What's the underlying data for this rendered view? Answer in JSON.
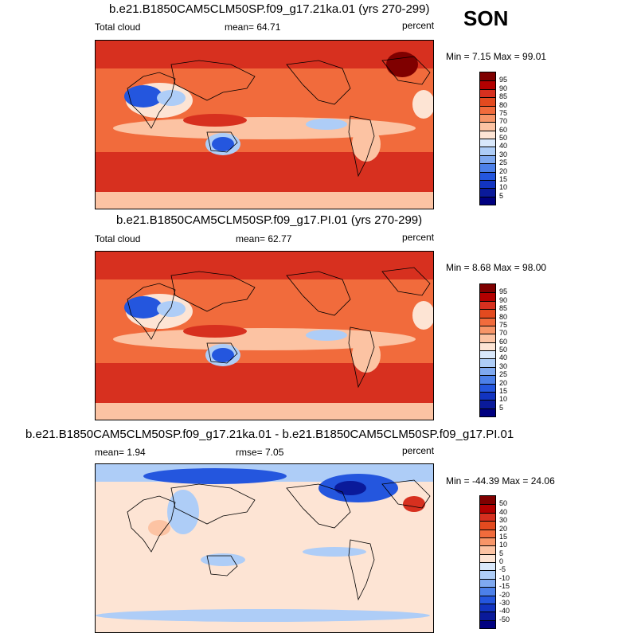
{
  "season": "SON",
  "panels": [
    {
      "title": "b.e21.B1850CAM5CLM50SP.f09_g17.21ka.01 (yrs 270-299)",
      "left_label": "Total cloud",
      "center_label": "mean=  64.71",
      "right_label": "percent",
      "minmax": "Min =   7.15 Max =  99.01",
      "cbar_labels": [
        "95",
        "90",
        "85",
        "80",
        "75",
        "70",
        "60",
        "50",
        "40",
        "30",
        "25",
        "20",
        "15",
        "10",
        "5"
      ],
      "cbar_colors": [
        "#7f0000",
        "#b30000",
        "#d7301f",
        "#e34a1f",
        "#f16b3c",
        "#f79568",
        "#fcc3a3",
        "#fde4d4",
        "#d9e8fb",
        "#aecdf7",
        "#7fa9f0",
        "#4c80e9",
        "#2456de",
        "#1234c0",
        "#0a1a9a",
        "#000080"
      ]
    },
    {
      "title": "b.e21.B1850CAM5CLM50SP.f09_g17.PI.01 (yrs 270-299)",
      "left_label": "Total cloud",
      "center_label": "mean=  62.77",
      "right_label": "percent",
      "minmax": "Min =   8.68 Max =  98.00",
      "cbar_labels": [
        "95",
        "90",
        "85",
        "80",
        "75",
        "70",
        "60",
        "50",
        "40",
        "30",
        "25",
        "20",
        "15",
        "10",
        "5"
      ],
      "cbar_colors": [
        "#7f0000",
        "#b30000",
        "#d7301f",
        "#e34a1f",
        "#f16b3c",
        "#f79568",
        "#fcc3a3",
        "#fde4d4",
        "#d9e8fb",
        "#aecdf7",
        "#7fa9f0",
        "#4c80e9",
        "#2456de",
        "#1234c0",
        "#0a1a9a",
        "#000080"
      ]
    },
    {
      "title": "b.e21.B1850CAM5CLM50SP.f09_g17.21ka.01 - b.e21.B1850CAM5CLM50SP.f09_g17.PI.01",
      "left_label": "mean=   1.94",
      "center_label": "rmse=   7.05",
      "right_label": "percent",
      "minmax": "Min = -44.39 Max =  24.06",
      "cbar_labels": [
        "50",
        "40",
        "30",
        "20",
        "15",
        "10",
        "5",
        "0",
        "-5",
        "-10",
        "-15",
        "-20",
        "-30",
        "-40",
        "-50"
      ],
      "cbar_colors": [
        "#7f0000",
        "#b30000",
        "#d7301f",
        "#e34a1f",
        "#f16b3c",
        "#f79568",
        "#fcc3a3",
        "#fde4d4",
        "#d9e8fb",
        "#aecdf7",
        "#7fa9f0",
        "#4c80e9",
        "#2456de",
        "#1234c0",
        "#0a1a9a",
        "#000080"
      ]
    }
  ],
  "map_colors": {
    "ocean_high": "#d7301f",
    "ocean_mid": "#f16b3c",
    "ocean_light": "#fcc3a3",
    "pale": "#fde4d4",
    "cool": "#aecdf7",
    "blue": "#2456de",
    "deep": "#0a1a9a",
    "coast": "#000000"
  }
}
